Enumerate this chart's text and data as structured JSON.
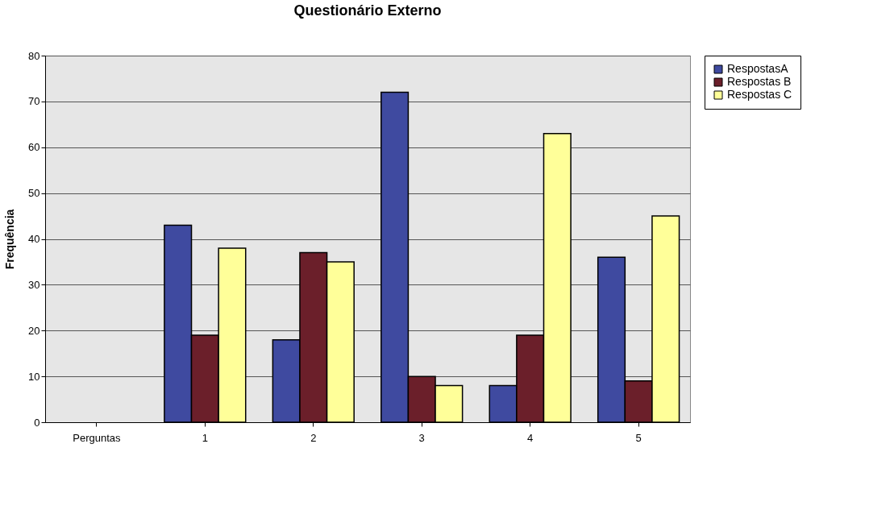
{
  "chart_data": {
    "type": "bar",
    "title": "Questionário Externo",
    "ylabel": "Frequência",
    "categories": [
      "Perguntas",
      "1",
      "2",
      "3",
      "4",
      "5"
    ],
    "series": [
      {
        "name": "RespostasA",
        "color": "#3f4aa0",
        "values": [
          null,
          43,
          18,
          72,
          8,
          36
        ]
      },
      {
        "name": "Respostas B",
        "color": "#6b1f2a",
        "values": [
          null,
          19,
          37,
          10,
          19,
          9
        ]
      },
      {
        "name": "Respostas C",
        "color": "#ffff99",
        "values": [
          null,
          38,
          35,
          8,
          63,
          45
        ]
      }
    ],
    "ylim": [
      0,
      80
    ],
    "yticks": [
      0,
      10,
      20,
      30,
      40,
      50,
      60,
      70,
      80
    ],
    "grid": "y",
    "legend": "right"
  }
}
